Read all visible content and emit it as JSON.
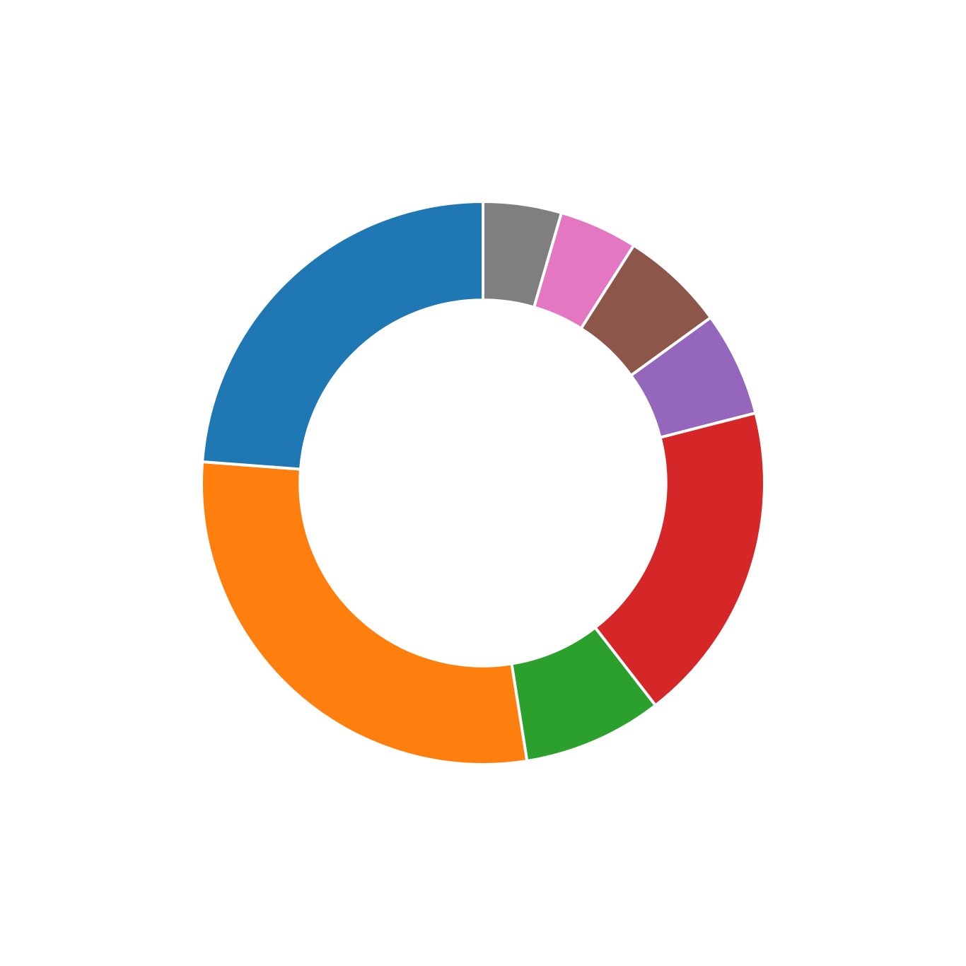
{
  "chart_data": {
    "type": "pie",
    "variant": "donut",
    "start": "top",
    "direction": "clockwise",
    "hole_fraction": 0.65,
    "legend": "none",
    "title": "",
    "slices": [
      {
        "value": 4.5,
        "color": "#7f7f7f"
      },
      {
        "value": 4.5,
        "color": "#e377c2"
      },
      {
        "value": 6.0,
        "color": "#8c564b"
      },
      {
        "value": 6.0,
        "color": "#9467bd"
      },
      {
        "value": 18.5,
        "color": "#d62728"
      },
      {
        "value": 8.0,
        "color": "#2ca02c"
      },
      {
        "value": 28.7,
        "color": "#ff7f0e"
      },
      {
        "value": 23.8,
        "color": "#1f77b4"
      }
    ]
  }
}
